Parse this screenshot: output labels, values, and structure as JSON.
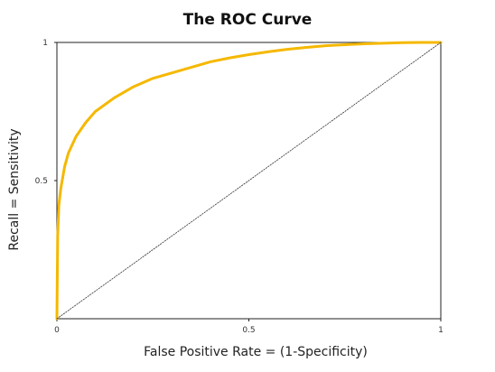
{
  "chart_data": {
    "type": "line",
    "title": "The ROC Curve",
    "xlabel": "False Positive Rate = (1-Specificity)",
    "ylabel": "Recall = Sensitivity",
    "xlim": [
      0,
      1
    ],
    "ylim": [
      0,
      1
    ],
    "grid": false,
    "legend": "none",
    "x_ticks": [
      {
        "value": 0,
        "label": "0"
      },
      {
        "value": 0.5,
        "label": "0.5"
      },
      {
        "value": 1,
        "label": "1"
      }
    ],
    "y_ticks": [
      {
        "value": 0.5,
        "label": "0.5"
      },
      {
        "value": 1,
        "label": "1"
      }
    ],
    "series": [
      {
        "role": "roc-curve",
        "color": "#F5B800",
        "style": "solid",
        "x": [
          0,
          0.001,
          0.002,
          0.005,
          0.01,
          0.02,
          0.03,
          0.05,
          0.075,
          0.1,
          0.15,
          0.2,
          0.25,
          0.3,
          0.35,
          0.4,
          0.45,
          0.5,
          0.55,
          0.6,
          0.65,
          0.7,
          0.75,
          0.8,
          0.85,
          0.9,
          0.95,
          1
        ],
        "y": [
          0,
          0.15,
          0.3,
          0.41,
          0.47,
          0.55,
          0.6,
          0.66,
          0.71,
          0.75,
          0.8,
          0.84,
          0.87,
          0.89,
          0.91,
          0.93,
          0.944,
          0.956,
          0.966,
          0.975,
          0.982,
          0.988,
          0.992,
          0.995,
          0.997,
          0.999,
          1.0,
          1.0
        ]
      },
      {
        "role": "random-classifier-diagonal",
        "color": "#333333",
        "style": "dotted",
        "x": [
          0,
          1
        ],
        "y": [
          0,
          1
        ]
      }
    ]
  }
}
